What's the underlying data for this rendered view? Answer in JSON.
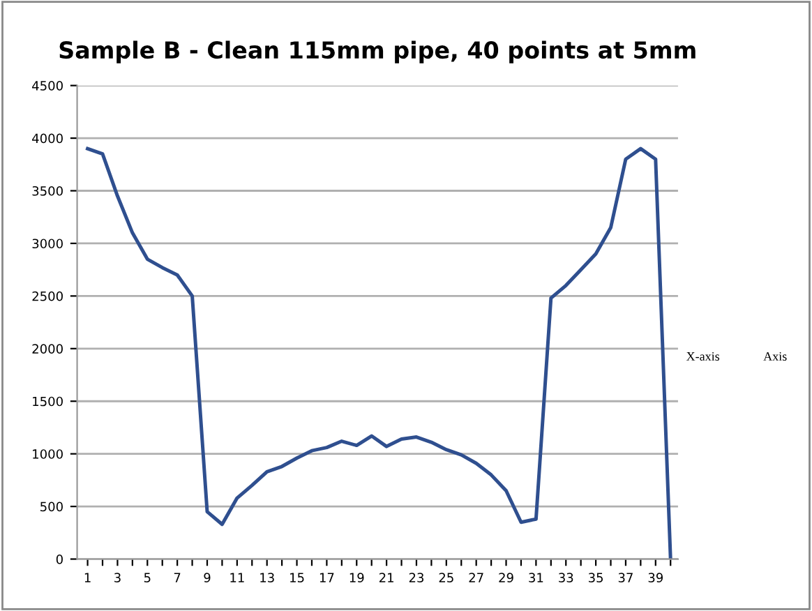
{
  "chart_data": {
    "type": "line",
    "title": "Sample B - Clean 115mm pipe, 40 points at 5mm",
    "categories": [
      "1",
      null,
      "3",
      null,
      "5",
      null,
      "7",
      null,
      "9",
      null,
      "11",
      null,
      "13",
      null,
      "15",
      null,
      "17",
      null,
      "19",
      null,
      "21",
      null,
      "23",
      null,
      "25",
      null,
      "27",
      null,
      "29",
      null,
      "31",
      null,
      "33",
      null,
      "35",
      null,
      "37",
      null,
      "39",
      null
    ],
    "series": [
      {
        "color": "#2f4f8f",
        "values": [
          3900,
          3850,
          3450,
          3100,
          2850,
          2770,
          2700,
          2500,
          450,
          330,
          580,
          700,
          830,
          880,
          960,
          1030,
          1060,
          1120,
          1080,
          1170,
          1070,
          1140,
          1160,
          1110,
          1040,
          990,
          910,
          800,
          650,
          350,
          380,
          2480,
          2600,
          2750,
          2900,
          3150,
          3800,
          3900,
          3800,
          0
        ]
      }
    ],
    "ylim": [
      0,
      4500
    ],
    "yticks": [
      0,
      500,
      1000,
      1500,
      2000,
      2500,
      3000,
      3500,
      4000,
      4500
    ],
    "grid": "y",
    "marker": "none",
    "line_style": "solid",
    "annotations": [
      "X-axis",
      "Axis"
    ]
  }
}
